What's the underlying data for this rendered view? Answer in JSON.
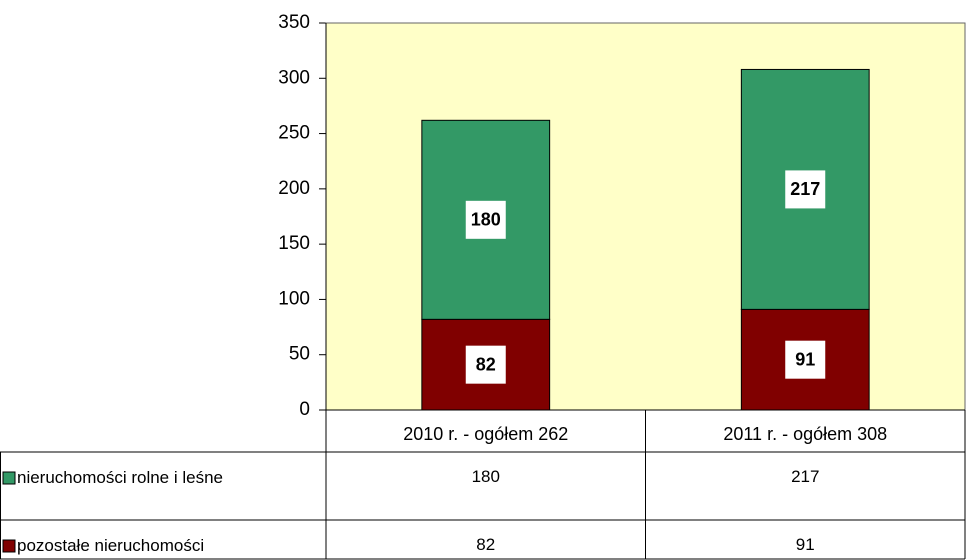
{
  "chart_data": {
    "type": "stacked_bar",
    "categories": [
      "2010 r. - ogółem 262",
      "2011 r. - ogółem 308"
    ],
    "series": [
      {
        "name": "pozostałe nieruchomości",
        "color": "#800000",
        "values": [
          82,
          91
        ]
      },
      {
        "name": "nieruchomości rolne i leśne",
        "color": "#339966",
        "values": [
          180,
          217
        ]
      }
    ],
    "ylim": [
      0,
      350
    ],
    "yticks": [
      0,
      50,
      100,
      150,
      200,
      250,
      300,
      350
    ],
    "plot_background": "#ffffc8"
  }
}
